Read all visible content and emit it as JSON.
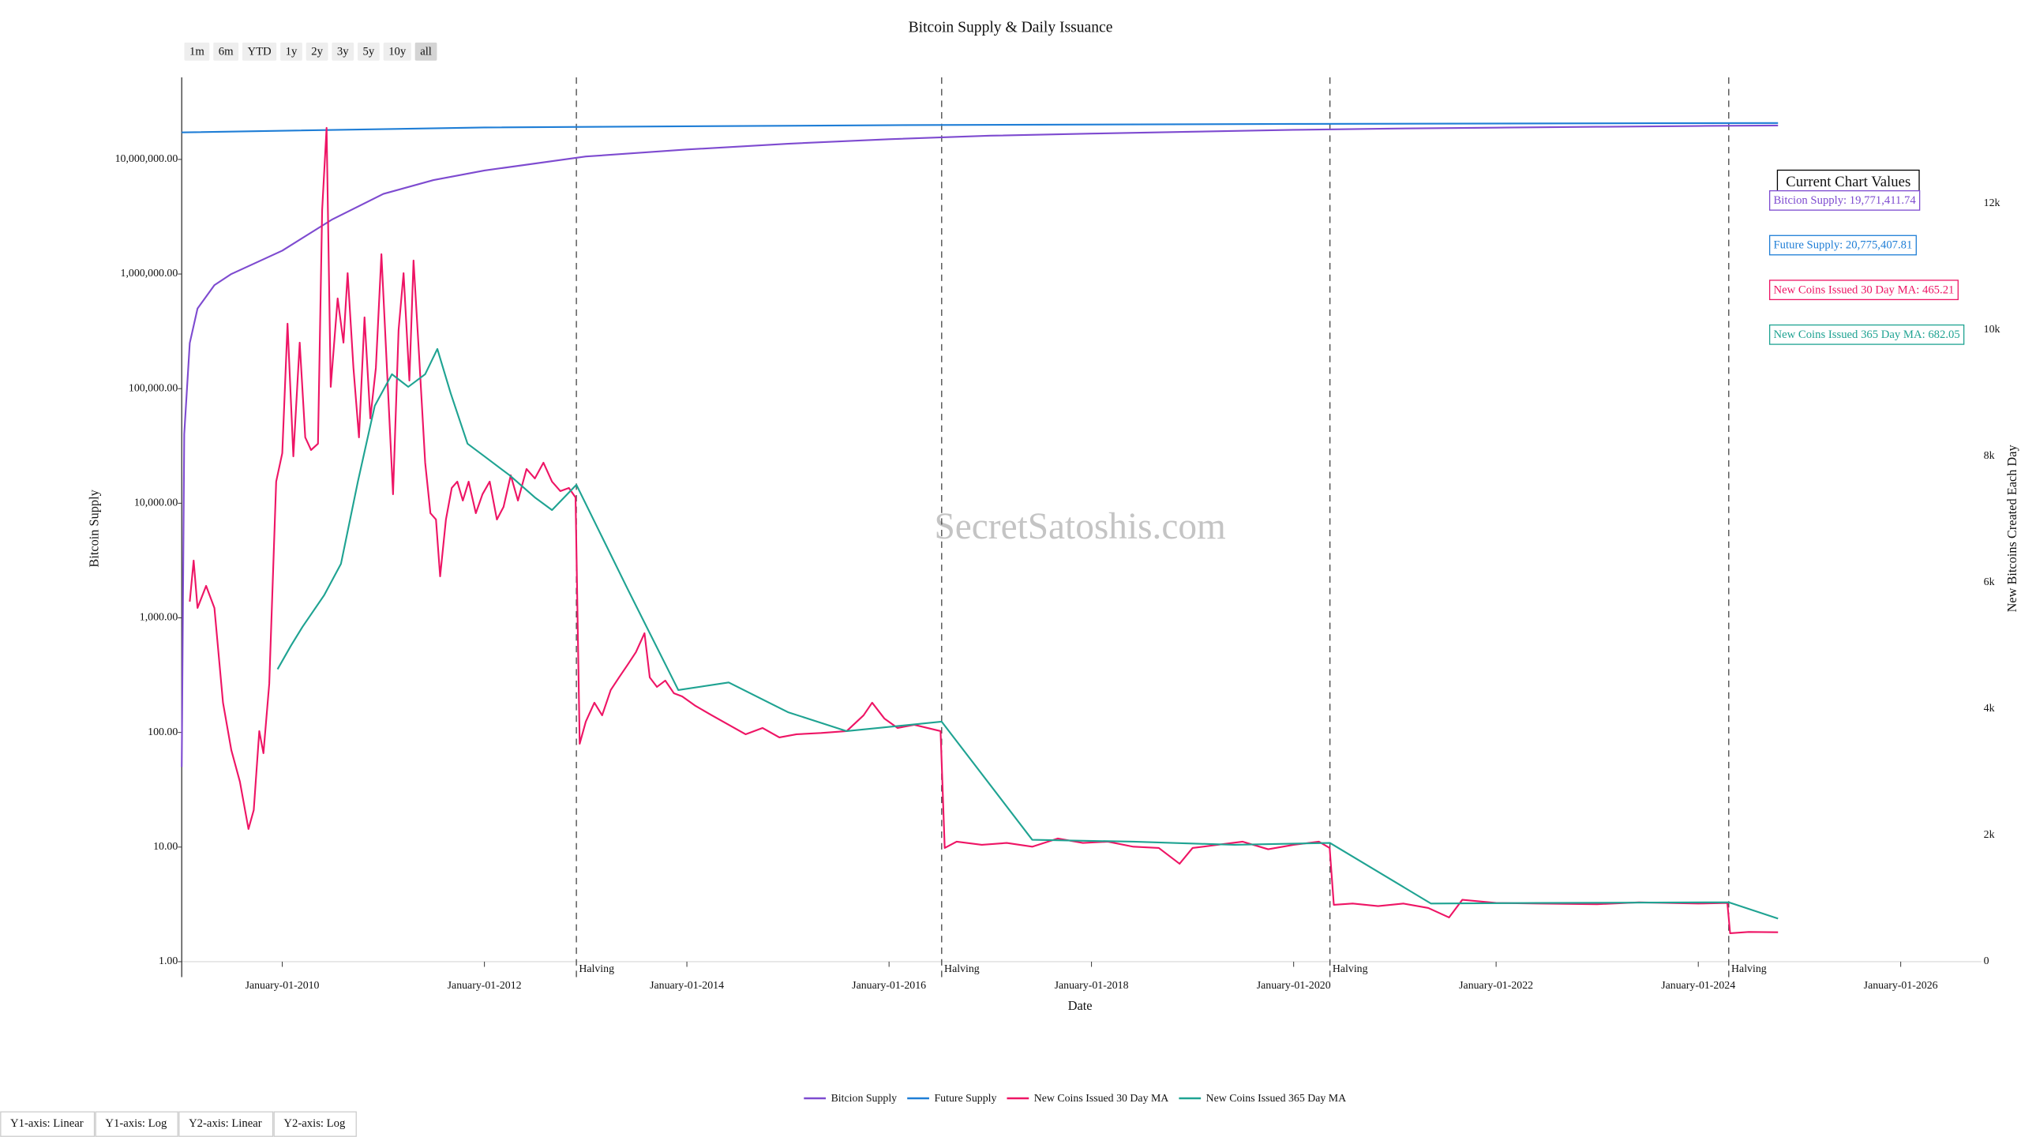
{
  "chart_data": {
    "type": "line",
    "title": "Bitcoin Supply & Daily Issuance",
    "xlabel": "Date",
    "ylabel": "Bitcoin Supply",
    "y2label": "New Bitcoins Created Each Day",
    "yscale": "log",
    "y2scale": "linear",
    "xlim": [
      "2009-01-03",
      "2026-11-01"
    ],
    "ylim": [
      1,
      52000000
    ],
    "y2lim": [
      0,
      14000
    ],
    "xticks": [
      {
        "value": "2010-01-01",
        "label": "January-01-2010"
      },
      {
        "value": "2012-01-01",
        "label": "January-01-2012"
      },
      {
        "value": "2014-01-01",
        "label": "January-01-2014"
      },
      {
        "value": "2016-01-01",
        "label": "January-01-2016"
      },
      {
        "value": "2018-01-01",
        "label": "January-01-2018"
      },
      {
        "value": "2020-01-01",
        "label": "January-01-2020"
      },
      {
        "value": "2022-01-01",
        "label": "January-01-2022"
      },
      {
        "value": "2024-01-01",
        "label": "January-01-2024"
      },
      {
        "value": "2026-01-01",
        "label": "January-01-2026"
      }
    ],
    "yticks": [
      {
        "value": 1,
        "label": "1.00"
      },
      {
        "value": 10,
        "label": "10.00"
      },
      {
        "value": 100,
        "label": "100.00"
      },
      {
        "value": 1000,
        "label": "1,000.00"
      },
      {
        "value": 10000,
        "label": "10,000.00"
      },
      {
        "value": 100000,
        "label": "100,000.00"
      },
      {
        "value": 1000000,
        "label": "1,000,000.00"
      },
      {
        "value": 10000000,
        "label": "10,000,000.00"
      }
    ],
    "y2ticks": [
      0,
      {
        "value": 2000,
        "label": "2k"
      },
      {
        "value": 4000,
        "label": "4k"
      },
      {
        "value": 6000,
        "label": "6k"
      },
      {
        "value": 8000,
        "label": "8k"
      },
      {
        "value": 10000,
        "label": "10k"
      },
      {
        "value": 12000,
        "label": "12k"
      }
    ],
    "grid": false,
    "legend": "bottom",
    "watermark": "SecretSatoshis.com",
    "annotations": [
      {
        "x": "2012-11-28",
        "text": "Halving"
      },
      {
        "x": "2016-07-09",
        "text": "Halving"
      },
      {
        "x": "2020-05-11",
        "text": "Halving"
      },
      {
        "x": "2024-04-20",
        "text": "Halving"
      }
    ],
    "current_values": {
      "title": "Current Chart Values",
      "items": [
        {
          "text": "Bitcion Supply: 19,771,411.74",
          "color": "#7e4bd0"
        },
        {
          "text": "Future Supply: 20,775,407.81",
          "color": "#1f7ed6"
        },
        {
          "text": "New Coins Issued 30 Day MA: 465.21",
          "color": "#ee1565"
        },
        {
          "text": "New Coins Issued 365 Day MA: 682.05",
          "color": "#1fa392"
        }
      ]
    },
    "range_buttons": [
      "1m",
      "6m",
      "YTD",
      "1y",
      "2y",
      "3y",
      "5y",
      "10y",
      "all"
    ],
    "axis_buttons": [
      "Y1-axis: Linear",
      "Y1-axis: Log",
      "Y2-axis: Linear",
      "Y2-axis: Log"
    ],
    "series": [
      {
        "name": "Bitcion Supply",
        "color": "#7e4bd0",
        "axis": "y",
        "x": [
          "2009-01-03",
          "2009-01-12",
          "2009-02-01",
          "2009-03-01",
          "2009-05-01",
          "2009-07-01",
          "2010-01-01",
          "2010-07-01",
          "2011-01-01",
          "2011-07-01",
          "2012-01-01",
          "2013-01-01",
          "2014-01-01",
          "2015-01-01",
          "2016-01-01",
          "2017-01-01",
          "2018-01-01",
          "2019-01-01",
          "2020-01-01",
          "2021-01-01",
          "2022-01-01",
          "2023-01-01",
          "2024-01-01",
          "2024-10-15"
        ],
        "values": [
          50,
          40000,
          250000,
          500000,
          800000,
          1000000,
          1600000,
          3000000,
          5000000,
          6600000,
          8000000,
          10600000,
          12200000,
          13700000,
          15000000,
          16100000,
          16800000,
          17450000,
          18100000,
          18590000,
          18920000,
          19250000,
          19580000,
          19771411.74
        ]
      },
      {
        "name": "Future Supply",
        "color": "#1f7ed6",
        "axis": "y",
        "x": [
          "2009-01-03",
          "2012-01-01",
          "2016-01-01",
          "2020-01-01",
          "2024-10-15"
        ],
        "values": [
          17200000,
          19000000,
          19900000,
          20400000,
          20775407.81
        ]
      },
      {
        "name": "New Coins Issued 30 Day MA",
        "color": "#ee1565",
        "axis": "y2",
        "x": [
          "2009-02-01",
          "2009-02-15",
          "2009-03-01",
          "2009-04-01",
          "2009-05-01",
          "2009-06-01",
          "2009-07-01",
          "2009-08-01",
          "2009-09-01",
          "2009-09-20",
          "2009-10-10",
          "2009-10-25",
          "2009-11-15",
          "2009-12-10",
          "2010-01-01",
          "2010-01-20",
          "2010-02-10",
          "2010-03-05",
          "2010-03-25",
          "2010-04-15",
          "2010-05-10",
          "2010-05-25",
          "2010-06-10",
          "2010-06-25",
          "2010-07-20",
          "2010-08-10",
          "2010-08-25",
          "2010-09-15",
          "2010-10-05",
          "2010-10-25",
          "2010-11-15",
          "2010-12-05",
          "2010-12-25",
          "2011-01-15",
          "2011-02-05",
          "2011-02-25",
          "2011-03-15",
          "2011-04-05",
          "2011-04-20",
          "2011-05-10",
          "2011-06-01",
          "2011-06-20",
          "2011-07-10",
          "2011-07-25",
          "2011-08-15",
          "2011-09-05",
          "2011-09-25",
          "2011-10-15",
          "2011-11-05",
          "2011-12-01",
          "2011-12-25",
          "2012-01-20",
          "2012-02-15",
          "2012-03-10",
          "2012-04-05",
          "2012-05-01",
          "2012-06-01",
          "2012-07-01",
          "2012-08-01",
          "2012-09-01",
          "2012-10-01",
          "2012-11-01",
          "2012-11-25",
          "2012-12-10",
          "2013-01-01",
          "2013-02-01",
          "2013-03-01",
          "2013-04-01",
          "2013-05-01",
          "2013-06-01",
          "2013-07-01",
          "2013-08-01",
          "2013-08-20",
          "2013-09-15",
          "2013-10-15",
          "2013-11-15",
          "2013-12-15",
          "2014-02-01",
          "2014-04-01",
          "2014-06-01",
          "2014-08-01",
          "2014-10-01",
          "2014-12-01",
          "2015-02-01",
          "2015-05-01",
          "2015-08-01",
          "2015-10-01",
          "2015-11-01",
          "2015-12-15",
          "2016-02-01",
          "2016-04-01",
          "2016-07-05",
          "2016-07-20",
          "2016-09-01",
          "2016-12-01",
          "2017-03-01",
          "2017-06-01",
          "2017-09-01",
          "2017-12-01",
          "2018-03-01",
          "2018-06-01",
          "2018-09-01",
          "2018-11-15",
          "2019-01-01",
          "2019-04-01",
          "2019-07-01",
          "2019-10-01",
          "2020-01-01",
          "2020-04-01",
          "2020-05-10",
          "2020-05-25",
          "2020-08-01",
          "2020-11-01",
          "2021-02-01",
          "2021-05-01",
          "2021-07-15",
          "2021-09-01",
          "2022-01-01",
          "2022-06-01",
          "2023-01-01",
          "2023-06-01",
          "2024-01-01",
          "2024-04-15",
          "2024-04-25",
          "2024-07-01",
          "2024-10-15"
        ],
        "values": [
          5700,
          6350,
          5600,
          5950,
          5600,
          4100,
          3350,
          2850,
          2100,
          2400,
          3650,
          3300,
          4400,
          7600,
          8050,
          10100,
          8000,
          9800,
          8300,
          8100,
          8200,
          11900,
          13200,
          9100,
          10500,
          9800,
          10900,
          9400,
          8300,
          10200,
          8600,
          9400,
          11200,
          9300,
          7400,
          10000,
          10900,
          9200,
          11100,
          9600,
          7900,
          7100,
          7000,
          6100,
          7000,
          7500,
          7600,
          7300,
          7600,
          7100,
          7400,
          7600,
          7000,
          7200,
          7700,
          7300,
          7800,
          7650,
          7900,
          7600,
          7450,
          7500,
          7350,
          3450,
          3800,
          4100,
          3900,
          4300,
          4500,
          4700,
          4900,
          5200,
          4500,
          4350,
          4450,
          4250,
          4200,
          4050,
          3900,
          3750,
          3600,
          3700,
          3550,
          3600,
          3620,
          3650,
          3900,
          4100,
          3850,
          3700,
          3750,
          3650,
          1800,
          1900,
          1850,
          1880,
          1820,
          1950,
          1880,
          1900,
          1820,
          1800,
          1550,
          1800,
          1850,
          1900,
          1780,
          1850,
          1900,
          1800,
          900,
          920,
          880,
          920,
          850,
          700,
          980,
          930,
          920,
          910,
          940,
          920,
          930,
          450,
          470,
          465.21
        ]
      },
      {
        "name": "New Coins Issued 365 Day MA",
        "color": "#1fa392",
        "axis": "y2",
        "x": [
          "2009-12-15",
          "2010-02-01",
          "2010-03-15",
          "2010-06-01",
          "2010-08-01",
          "2010-10-01",
          "2010-12-01",
          "2011-02-01",
          "2011-04-01",
          "2011-06-01",
          "2011-07-15",
          "2011-09-01",
          "2011-11-01",
          "2012-01-01",
          "2012-04-01",
          "2012-07-01",
          "2012-09-01",
          "2012-11-28",
          "2013-06-01",
          "2013-12-01",
          "2014-06-01",
          "2015-01-01",
          "2015-08-01",
          "2016-07-09",
          "2017-06-01",
          "2018-06-01",
          "2019-06-01",
          "2020-05-11",
          "2021-05-11",
          "2022-06-01",
          "2024-04-20",
          "2024-10-15"
        ],
        "values": [
          4630,
          5000,
          5300,
          5800,
          6300,
          7600,
          8800,
          9300,
          9100,
          9300,
          9700,
          9000,
          8200,
          8000,
          7700,
          7350,
          7150,
          7550,
          5900,
          4300,
          4420,
          3950,
          3650,
          3800,
          1930,
          1900,
          1850,
          1880,
          920,
          930,
          940,
          682.05
        ]
      }
    ]
  }
}
